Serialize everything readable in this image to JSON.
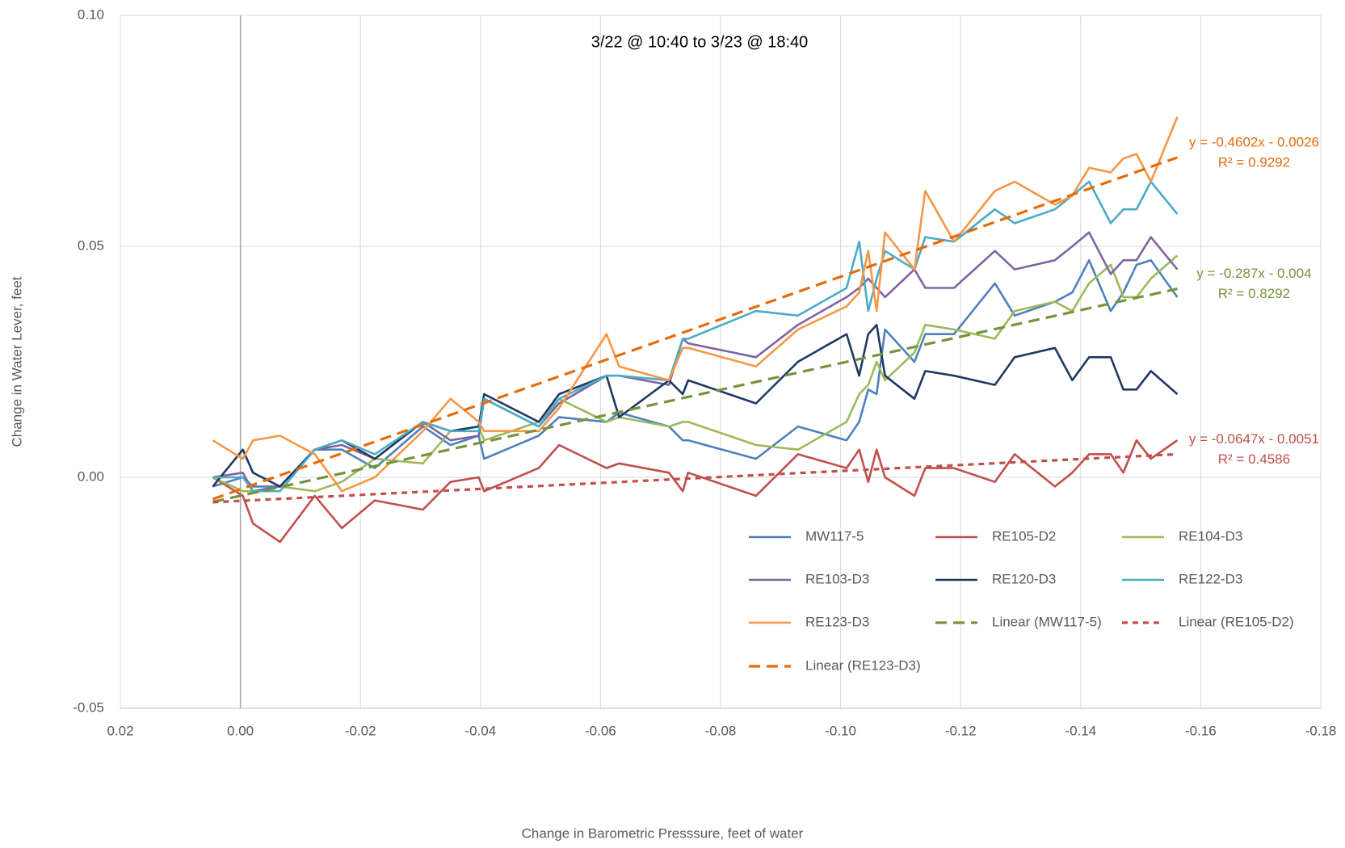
{
  "chart_data": {
    "type": "line",
    "annotation": "3/22 @ 10:40 to 3/23 @ 18:40",
    "x_label": "Change in Barometric Presssure, feet of water",
    "y_label": "Change in Water Lever, feet",
    "xlim": [
      0.02,
      -0.18
    ],
    "xticks": [
      0.02,
      {
        "value": 0,
        "label": "0.00"
      },
      -0.02,
      -0.04,
      -0.06,
      -0.08,
      {
        "value": -0.1,
        "label": "-0.10"
      },
      -0.12,
      -0.14,
      -0.16,
      -0.18
    ],
    "ylim": [
      -0.05,
      0.1
    ],
    "yticks": [
      -0.05,
      {
        "value": 0,
        "label": "0.00"
      },
      0.05,
      {
        "value": 0.1,
        "label": "0.10"
      }
    ],
    "grid": true,
    "x": [
      0.0046,
      -0.0004,
      -0.0021,
      -0.0066,
      -0.0124,
      -0.0169,
      -0.0224,
      -0.0304,
      -0.035,
      -0.0397,
      -0.0406,
      -0.0497,
      -0.0531,
      -0.061,
      -0.0631,
      -0.0714,
      -0.0737,
      -0.0746,
      -0.0859,
      -0.0929,
      -0.101,
      -0.1031,
      -0.1046,
      -0.106,
      -0.1074,
      -0.1123,
      -0.1141,
      -0.1189,
      -0.1257,
      -0.129,
      -0.1357,
      -0.1386,
      -0.1414,
      -0.145,
      -0.1471,
      -0.1493,
      -0.1517,
      -0.1561
    ],
    "series": [
      {
        "name": "MW117-5",
        "color": "#4f81bd",
        "values": [
          -0.002,
          0.0,
          -0.002,
          -0.002,
          0.006,
          0.006,
          0.002,
          0.011,
          0.007,
          0.009,
          0.004,
          0.009,
          0.013,
          0.012,
          0.014,
          0.011,
          0.008,
          0.008,
          0.004,
          0.011,
          0.008,
          0.012,
          0.019,
          0.018,
          0.032,
          0.025,
          0.031,
          0.031,
          0.042,
          0.035,
          0.038,
          0.04,
          0.047,
          0.036,
          0.04,
          0.046,
          0.047,
          0.039
        ]
      },
      {
        "name": "RE105-D2",
        "color": "#c0504d",
        "values": [
          0.0,
          -0.004,
          -0.01,
          -0.014,
          -0.004,
          -0.011,
          -0.005,
          -0.007,
          -0.001,
          0.0,
          -0.003,
          0.002,
          0.007,
          0.002,
          0.003,
          0.001,
          -0.003,
          0.001,
          -0.004,
          0.005,
          0.002,
          0.006,
          -0.001,
          0.006,
          0.0,
          -0.004,
          0.002,
          0.002,
          -0.001,
          0.005,
          -0.002,
          0.001,
          0.005,
          0.005,
          0.001,
          0.008,
          0.004,
          0.008
        ]
      },
      {
        "name": "RE104-D3",
        "color": "#9bbb59",
        "values": [
          0.0,
          -0.003,
          -0.003,
          -0.002,
          -0.003,
          -0.001,
          0.004,
          0.003,
          0.01,
          0.011,
          0.008,
          0.012,
          0.017,
          0.012,
          0.013,
          0.011,
          0.012,
          0.012,
          0.007,
          0.006,
          0.012,
          0.018,
          0.02,
          0.025,
          0.021,
          0.027,
          0.033,
          0.032,
          0.03,
          0.036,
          0.038,
          0.036,
          0.042,
          0.046,
          0.039,
          0.039,
          0.043,
          0.048
        ]
      },
      {
        "name": "RE103-D3",
        "color": "#8064a2",
        "values": [
          0.0,
          0.001,
          -0.003,
          -0.002,
          0.006,
          0.007,
          0.004,
          0.012,
          0.008,
          0.009,
          0.017,
          0.011,
          0.016,
          0.022,
          0.022,
          0.02,
          0.03,
          0.029,
          0.026,
          0.033,
          0.039,
          0.041,
          0.043,
          0.041,
          0.039,
          0.045,
          0.041,
          0.041,
          0.049,
          0.045,
          0.047,
          0.05,
          0.053,
          0.044,
          0.047,
          0.047,
          0.052,
          0.045
        ]
      },
      {
        "name": "RE120-D3",
        "color": "#1f3864",
        "values": [
          -0.002,
          0.006,
          0.001,
          -0.002,
          0.006,
          0.008,
          0.004,
          0.012,
          0.01,
          0.011,
          0.018,
          0.012,
          0.018,
          0.022,
          0.013,
          0.021,
          0.018,
          0.021,
          0.016,
          0.025,
          0.031,
          0.022,
          0.031,
          0.033,
          0.022,
          0.017,
          0.023,
          0.022,
          0.02,
          0.026,
          0.028,
          0.021,
          0.026,
          0.026,
          0.019,
          0.019,
          0.023,
          0.018
        ]
      },
      {
        "name": "RE122-D3",
        "color": "#4bacc6",
        "values": [
          0.0,
          0.0,
          -0.003,
          -0.003,
          0.006,
          0.008,
          0.005,
          0.012,
          0.01,
          0.01,
          0.017,
          0.011,
          0.017,
          0.022,
          0.022,
          0.021,
          0.03,
          0.03,
          0.036,
          0.035,
          0.041,
          0.051,
          0.036,
          0.043,
          0.049,
          0.045,
          0.052,
          0.051,
          0.058,
          0.055,
          0.058,
          0.061,
          0.064,
          0.055,
          0.058,
          0.058,
          0.064,
          0.057
        ]
      },
      {
        "name": "RE123-D3",
        "color": "#f79646",
        "values": [
          0.008,
          0.004,
          0.008,
          0.009,
          0.005,
          -0.003,
          0.0,
          0.01,
          0.017,
          0.012,
          0.01,
          0.01,
          0.015,
          0.031,
          0.024,
          0.021,
          0.028,
          0.028,
          0.024,
          0.032,
          0.037,
          0.04,
          0.049,
          0.036,
          0.053,
          0.045,
          0.062,
          0.051,
          0.062,
          0.064,
          0.059,
          0.061,
          0.067,
          0.066,
          0.069,
          0.07,
          0.064,
          0.078
        ]
      }
    ],
    "trendlines": [
      {
        "name": "Linear (MW117-5)",
        "color": "#77933c",
        "dash": "14 8",
        "slope": -0.287,
        "intercept": -0.004,
        "equation": "y = -0.287x - 0.004",
        "r2_label": "R² = 0.8292"
      },
      {
        "name": "Linear (RE105-D2)",
        "color": "#c0504d",
        "dash": "7 6",
        "slope": -0.0647,
        "intercept": -0.0051,
        "equation": "y = -0.0647x - 0.0051",
        "r2_label": "R² = 0.4586"
      },
      {
        "name": "Linear (RE123-D3)",
        "color": "#e46c0a",
        "dash": "14 8",
        "slope": -0.4602,
        "intercept": -0.0026,
        "equation": "y = -0.4602x - 0.0026",
        "r2_label": "R² = 0.9292"
      }
    ]
  }
}
